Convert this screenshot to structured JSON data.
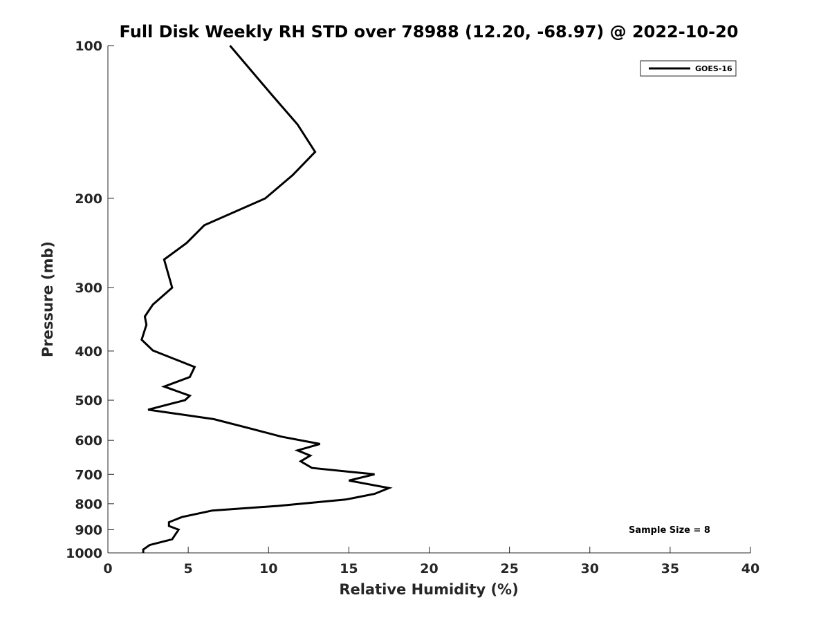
{
  "chart_data": {
    "type": "line",
    "title": "Full Disk Weekly RH STD over 78988 (12.20, -68.97) @ 2022-10-20",
    "xlabel": "Relative Humidity (%)",
    "ylabel": "Pressure (mb)",
    "xlim": [
      0,
      40
    ],
    "ylim": [
      100,
      1000
    ],
    "yscale": "log",
    "y_reversed": true,
    "x_ticks": [
      0,
      5,
      10,
      15,
      20,
      25,
      30,
      35,
      40
    ],
    "y_ticks": [
      100,
      200,
      300,
      400,
      500,
      600,
      700,
      800,
      900,
      1000
    ],
    "grid": false,
    "legend_position": "top-right",
    "series": [
      {
        "name": "GOES-16",
        "color": "#000000",
        "points": [
          [
            7.6,
            100
          ],
          [
            10.2,
            125
          ],
          [
            11.8,
            143
          ],
          [
            12.9,
            162
          ],
          [
            11.5,
            180
          ],
          [
            9.8,
            200
          ],
          [
            6.0,
            226
          ],
          [
            4.9,
            245
          ],
          [
            3.5,
            264
          ],
          [
            4.0,
            300
          ],
          [
            2.8,
            324
          ],
          [
            2.3,
            342
          ],
          [
            2.4,
            355
          ],
          [
            2.1,
            380
          ],
          [
            2.8,
            399
          ],
          [
            5.4,
            430
          ],
          [
            5.1,
            450
          ],
          [
            3.5,
            470
          ],
          [
            5.1,
            490
          ],
          [
            4.8,
            500
          ],
          [
            2.5,
            522
          ],
          [
            6.6,
            545
          ],
          [
            9.0,
            570
          ],
          [
            10.8,
            590
          ],
          [
            13.2,
            610
          ],
          [
            11.8,
            628
          ],
          [
            12.6,
            643
          ],
          [
            12.0,
            660
          ],
          [
            12.7,
            680
          ],
          [
            16.6,
            700
          ],
          [
            15.0,
            720
          ],
          [
            17.5,
            745
          ],
          [
            16.6,
            765
          ],
          [
            14.8,
            785
          ],
          [
            10.6,
            808
          ],
          [
            6.5,
            825
          ],
          [
            4.6,
            850
          ],
          [
            3.8,
            870
          ],
          [
            3.8,
            885
          ],
          [
            4.4,
            900
          ],
          [
            4.2,
            920
          ],
          [
            4.0,
            940
          ],
          [
            2.6,
            965
          ],
          [
            2.2,
            985
          ],
          [
            2.2,
            1000
          ]
        ]
      }
    ],
    "annotations": [
      "Sample Size = 8"
    ]
  }
}
